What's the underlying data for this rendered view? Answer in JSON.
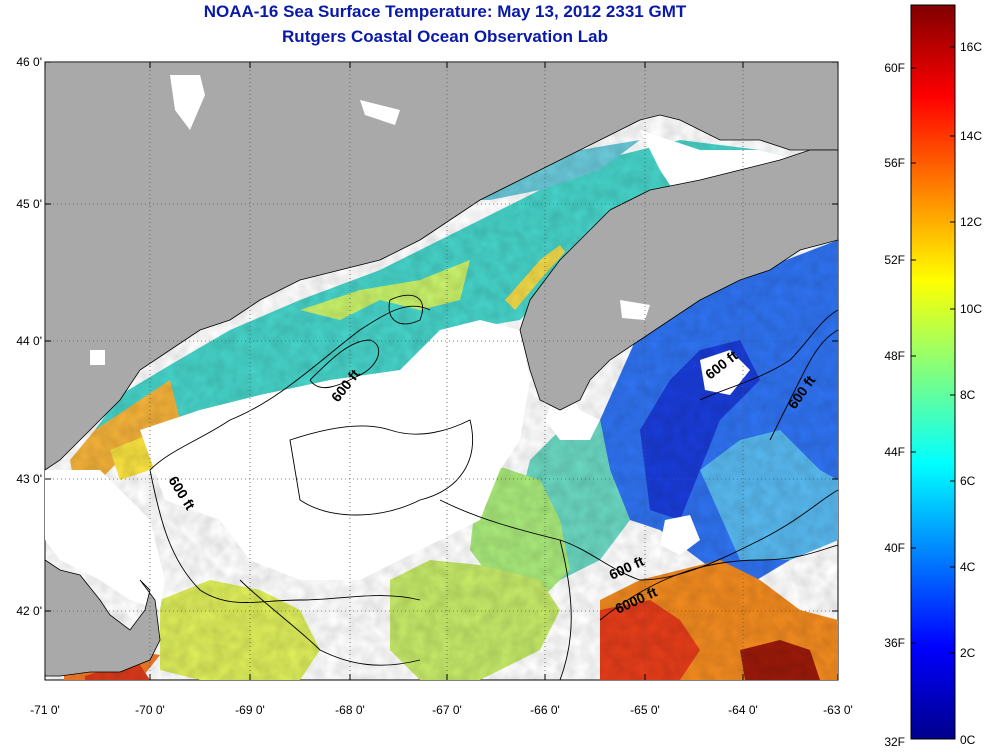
{
  "title_line1": "NOAA-16 Sea Surface Temperature:  May 13, 2012 2331 GMT",
  "title_line2": "Rutgers Coastal Ocean Observation Lab",
  "map": {
    "lon_labels": [
      "-71 0'",
      "-70 0'",
      "-69 0'",
      "-68 0'",
      "-67 0'",
      "-66 0'",
      "-65 0'",
      "-64 0'",
      "-63 0'"
    ],
    "lat_labels": [
      "46 0'",
      "45 0'",
      "44 0'",
      "43 0'",
      "42 0'"
    ],
    "contour_labels": [
      "600 ft",
      "600 ft",
      "600 ft",
      "600 ft",
      "600 ft",
      "6000 ft"
    ],
    "colors": {
      "land": "#a9a9a9",
      "no_data": "#ffffff",
      "grid": "#555555"
    }
  },
  "colorbar": {
    "fahrenheit_labels": [
      "60F",
      "56F",
      "52F",
      "48F",
      "44F",
      "40F",
      "36F",
      "32F"
    ],
    "celsius_labels": [
      "16C",
      "14C",
      "12C",
      "10C",
      "8C",
      "6C",
      "4C",
      "2C",
      "0C"
    ],
    "colors": [
      "#00008b",
      "#0000ff",
      "#0080ff",
      "#00ffff",
      "#80ff80",
      "#ffff00",
      "#ff8000",
      "#ff0000",
      "#800000"
    ]
  }
}
